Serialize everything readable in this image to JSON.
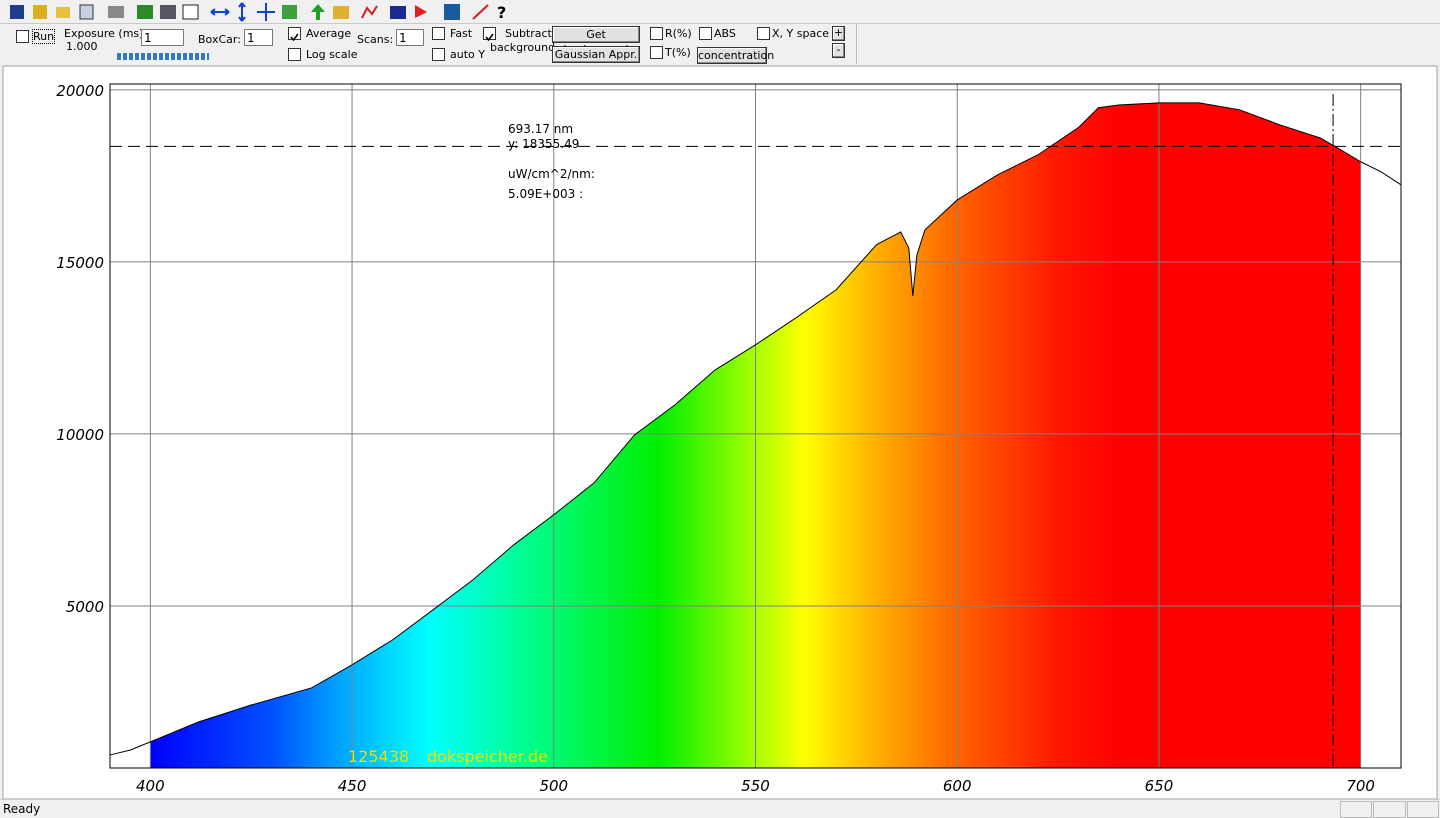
{
  "controls": {
    "run": {
      "label": "Run",
      "checked": false
    },
    "exposure": {
      "label": "Exposure (ms):",
      "reading": "1.000",
      "input": "1"
    },
    "boxcar": {
      "label": "BoxCar:",
      "input": "1"
    },
    "average": {
      "label": "Average",
      "checked": true
    },
    "log_scale": {
      "label": "Log scale",
      "checked": false
    },
    "scans": {
      "label": "Scans:",
      "input": "1"
    },
    "fast": {
      "label": "Fast",
      "checked": false
    },
    "auto_y": {
      "label": "auto Y",
      "checked": false
    },
    "subtract": {
      "label": "Subtract",
      "label2": "background",
      "checked": true
    },
    "get_background": "Get background",
    "gaussian": "Gaussian Appr.",
    "r_pct": {
      "label": "R(%)",
      "checked": false
    },
    "t_pct": {
      "label": "T(%)",
      "checked": false
    },
    "abs": {
      "label": "ABS",
      "checked": false
    },
    "concentration": "concentration",
    "xy_space": {
      "label": "X, Y space",
      "checked": false
    },
    "plus": "+",
    "minus": "-"
  },
  "chart_data": {
    "type": "area",
    "x": [
      390,
      395,
      400,
      412,
      425,
      440,
      450,
      460,
      470,
      480,
      490,
      500,
      510,
      520,
      530,
      540,
      550,
      560,
      570,
      580,
      586,
      588,
      589,
      590,
      592,
      600,
      610,
      620,
      630,
      635,
      640,
      650,
      660,
      670,
      680,
      690,
      695,
      700,
      705,
      710
    ],
    "series": [
      {
        "color": "#000000",
        "values": [
          670,
          810,
          1050,
          1630,
          2120,
          2620,
          3290,
          4010,
          4880,
          5760,
          6770,
          7650,
          8580,
          9970,
          10840,
          11860,
          12590,
          13370,
          14190,
          15500,
          15870,
          15400,
          14010,
          15200,
          15930,
          16800,
          17530,
          18110,
          18900,
          19480,
          19560,
          19620,
          19620,
          19420,
          18980,
          18600,
          18260,
          17910,
          17620,
          17240
        ]
      }
    ],
    "fill_range": [
      400,
      700
    ],
    "xlim": [
      390,
      710
    ],
    "ylim": [
      290,
      20170
    ],
    "xticks": [
      400,
      450,
      500,
      550,
      600,
      650,
      700
    ],
    "yticks": [
      5000,
      10000,
      15000,
      20000
    ],
    "grid": true,
    "cursor": {
      "x": 693.17,
      "y": 18355.49,
      "x_label": "693.17 nm",
      "y_label": "y: 18355.49"
    },
    "annotations": [
      "uW/cm^2/nm:",
      "5.09E+003  :"
    ],
    "watermark": [
      "125438",
      "dokspeicher.de"
    ]
  },
  "status": "Ready"
}
